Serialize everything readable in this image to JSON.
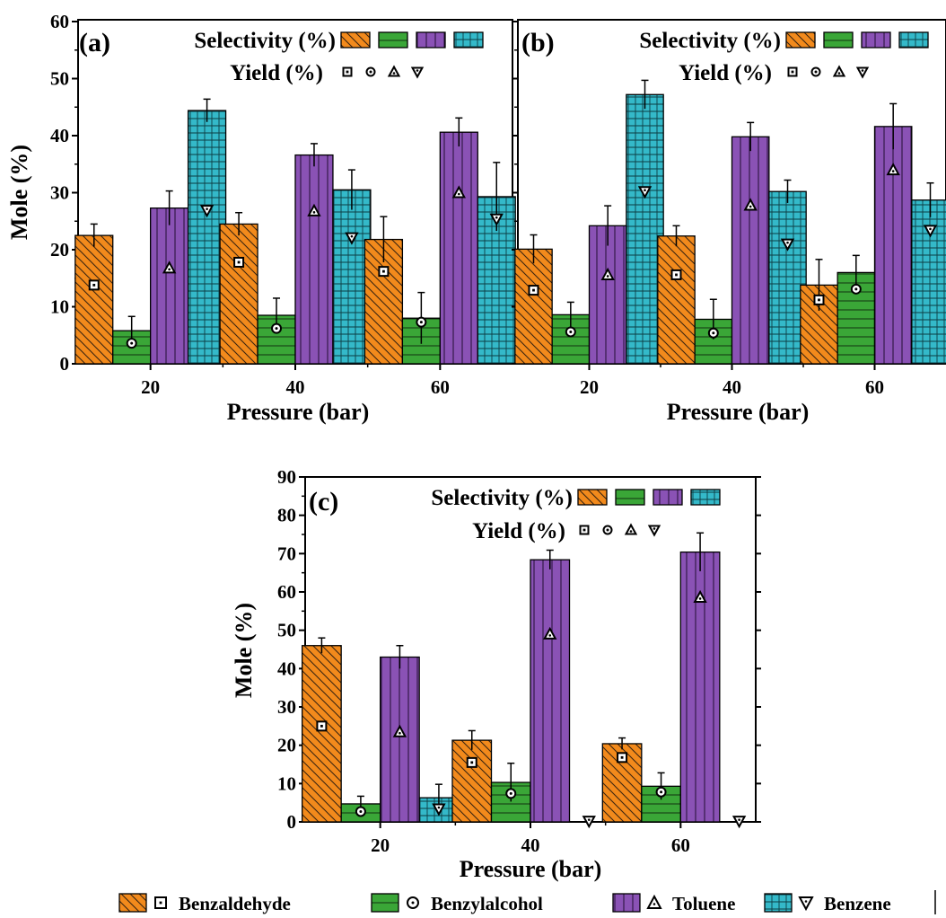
{
  "colors": {
    "Benzaldehyde": "#f28a1c",
    "Benzylalcohol": "#3aa637",
    "Toluene": "#8a52b5",
    "Benzene": "#34b9c9"
  },
  "legend": {
    "selectivity_label": "Selectivity (%)",
    "yield_label": "Yield (%)",
    "entries": [
      {
        "name": "Benzaldehyde",
        "pattern": "diag",
        "marker": "square"
      },
      {
        "name": "Benzylalcohol",
        "pattern": "hline",
        "marker": "circle"
      },
      {
        "name": "Toluene",
        "pattern": "vline",
        "marker": "triangle-up"
      },
      {
        "name": "Benzene",
        "pattern": "grid",
        "marker": "triangle-down"
      }
    ]
  },
  "chart_data": [
    {
      "type": "bar",
      "panel_label": "(a)",
      "xlabel": "Pressure (bar)",
      "ylabel": "Mole (%)",
      "categories": [
        "20",
        "40",
        "60"
      ],
      "ylim": [
        0,
        60
      ],
      "yticks": [
        0,
        10,
        20,
        30,
        40,
        50,
        60
      ],
      "series": [
        {
          "name": "Benzaldehyde",
          "selectivity": [
            22.5,
            24.5,
            21.8
          ],
          "error": [
            2.0,
            2.0,
            4.0
          ],
          "yield": [
            13.8,
            17.8,
            16.2
          ]
        },
        {
          "name": "Benzylalcohol",
          "selectivity": [
            5.8,
            8.5,
            8.0
          ],
          "error": [
            2.5,
            3.0,
            4.5
          ],
          "yield": [
            3.6,
            6.2,
            7.3
          ]
        },
        {
          "name": "Toluene",
          "selectivity": [
            27.3,
            36.6,
            40.6
          ],
          "error": [
            3.0,
            2.0,
            2.5
          ],
          "yield": [
            16.8,
            26.8,
            30.0
          ]
        },
        {
          "name": "Benzene",
          "selectivity": [
            44.4,
            30.5,
            29.3
          ],
          "error": [
            2.0,
            3.5,
            6.0
          ],
          "yield": [
            26.9,
            22.1,
            25.4
          ]
        }
      ]
    },
    {
      "type": "bar",
      "panel_label": "(b)",
      "xlabel": "Pressure (bar)",
      "ylabel": "",
      "categories": [
        "20",
        "40",
        "60"
      ],
      "ylim": [
        0,
        60
      ],
      "yticks": [
        0,
        10,
        20,
        30,
        40,
        50,
        60
      ],
      "series": [
        {
          "name": "Benzaldehyde",
          "selectivity": [
            20.1,
            22.4,
            13.8
          ],
          "error": [
            2.5,
            1.8,
            4.5
          ],
          "yield": [
            12.9,
            15.6,
            11.2
          ]
        },
        {
          "name": "Benzylalcohol",
          "selectivity": [
            8.6,
            7.8,
            16.0
          ],
          "error": [
            2.2,
            3.5,
            3.0
          ],
          "yield": [
            5.6,
            5.4,
            13.1
          ]
        },
        {
          "name": "Toluene",
          "selectivity": [
            24.2,
            39.8,
            41.6
          ],
          "error": [
            3.5,
            2.5,
            4.0
          ],
          "yield": [
            15.6,
            27.8,
            34.0
          ]
        },
        {
          "name": "Benzene",
          "selectivity": [
            47.2,
            30.2,
            28.7
          ],
          "error": [
            2.5,
            2.0,
            3.0
          ],
          "yield": [
            30.2,
            21.0,
            23.4
          ]
        }
      ]
    },
    {
      "type": "bar",
      "panel_label": "(c)",
      "xlabel": "Pressure (bar)",
      "ylabel": "Mole (%)",
      "categories": [
        "20",
        "40",
        "60"
      ],
      "ylim": [
        0,
        90
      ],
      "yticks": [
        0,
        10,
        20,
        30,
        40,
        50,
        60,
        70,
        80,
        90
      ],
      "series": [
        {
          "name": "Benzaldehyde",
          "selectivity": [
            46.0,
            21.3,
            20.4
          ],
          "error": [
            2.0,
            2.5,
            1.5
          ],
          "yield": [
            25.0,
            15.5,
            16.8
          ]
        },
        {
          "name": "Benzylalcohol",
          "selectivity": [
            4.7,
            10.3,
            9.3
          ],
          "error": [
            2.0,
            5.0,
            3.5
          ],
          "yield": [
            2.7,
            7.4,
            7.8
          ]
        },
        {
          "name": "Toluene",
          "selectivity": [
            43.0,
            68.4,
            70.4
          ],
          "error": [
            3.0,
            2.5,
            5.0
          ],
          "yield": [
            23.5,
            49.0,
            58.6
          ]
        },
        {
          "name": "Benzene",
          "selectivity": [
            6.3,
            0.0,
            0.0
          ],
          "error": [
            3.5,
            0.0,
            0.0
          ],
          "yield": [
            3.4,
            0.2,
            0.2
          ]
        }
      ]
    }
  ]
}
